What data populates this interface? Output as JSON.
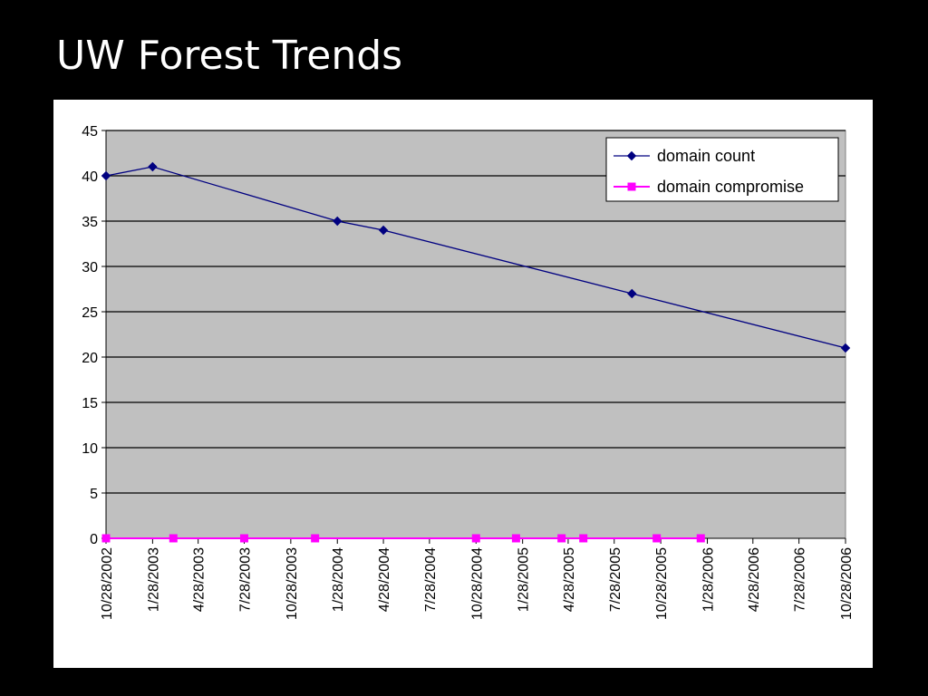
{
  "slide": {
    "title": "UW Forest Trends"
  },
  "chart_data": {
    "type": "line",
    "ylim": [
      0,
      45
    ],
    "y_ticks": [
      0,
      5,
      10,
      15,
      20,
      25,
      30,
      35,
      40,
      45
    ],
    "x_range": [
      "10/28/2002",
      "10/28/2006"
    ],
    "x_tick_labels": [
      "10/28/2002",
      "1/28/2003",
      "4/28/2003",
      "7/28/2003",
      "10/28/2003",
      "1/28/2004",
      "4/28/2004",
      "7/28/2004",
      "10/28/2004",
      "1/28/2005",
      "4/28/2005",
      "7/28/2005",
      "10/28/2005",
      "1/28/2006",
      "4/28/2006",
      "7/28/2006",
      "10/28/2006"
    ],
    "grid": "horizontal",
    "plot_background": "#c0c0c0",
    "legend_position": "top-right",
    "series": [
      {
        "name": "domain count",
        "color": "#000080",
        "marker": "diamond",
        "points": [
          {
            "x": "10/28/2002",
            "y": 40
          },
          {
            "x": "1/28/2003",
            "y": 41
          },
          {
            "x": "1/28/2004",
            "y": 35
          },
          {
            "x": "4/28/2004",
            "y": 34
          },
          {
            "x": "9/1/2005",
            "y": 27
          },
          {
            "x": "10/28/2006",
            "y": 21
          }
        ]
      },
      {
        "name": "domain compromise",
        "color": "#ff00ff",
        "marker": "square",
        "points": [
          {
            "x": "10/28/2002",
            "y": 0
          },
          {
            "x": "3/10/2003",
            "y": 0
          },
          {
            "x": "7/28/2003",
            "y": 0
          },
          {
            "x": "12/15/2003",
            "y": 0
          },
          {
            "x": "10/28/2004",
            "y": 0
          },
          {
            "x": "1/15/2005",
            "y": 0
          },
          {
            "x": "4/15/2005",
            "y": 0
          },
          {
            "x": "5/28/2005",
            "y": 0
          },
          {
            "x": "10/20/2005",
            "y": 0
          },
          {
            "x": "1/15/2006",
            "y": 0
          }
        ]
      }
    ]
  }
}
